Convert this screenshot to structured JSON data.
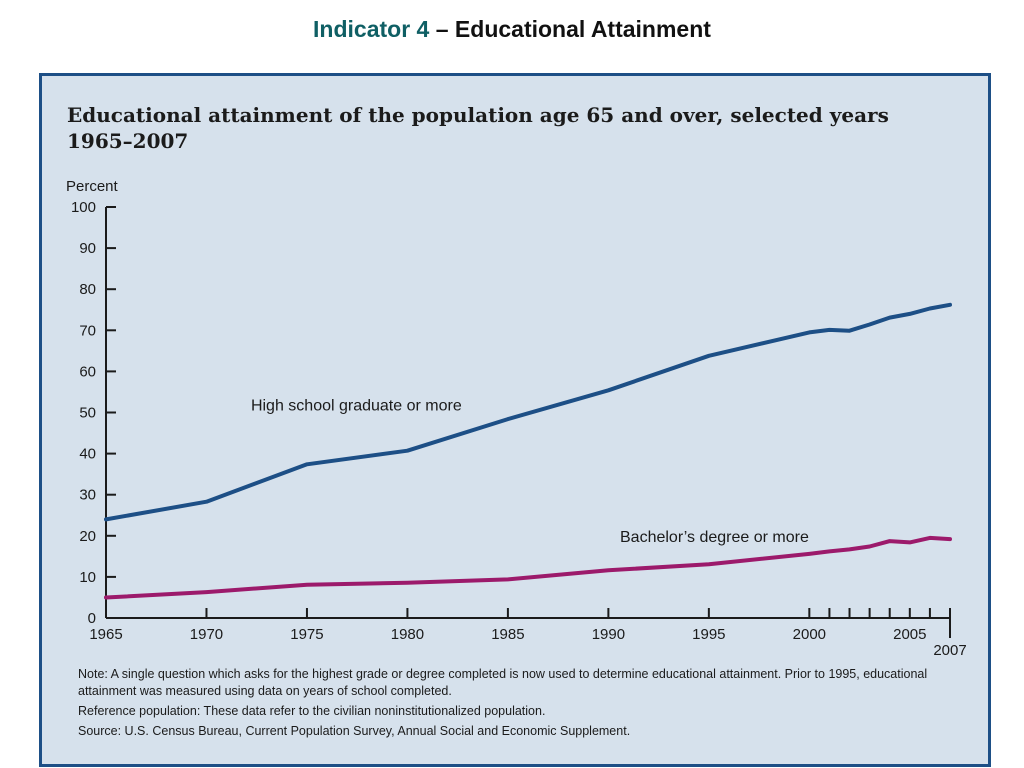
{
  "slide": {
    "title_accent": "Indicator 4",
    "title_rest": " – Educational Attainment"
  },
  "chart_data": {
    "type": "line",
    "title": "Educational attainment of the population age 65 and over, selected years 1965–2007",
    "ylabel": "Percent",
    "xlim": [
      1965,
      2007
    ],
    "ylim": [
      0,
      100
    ],
    "y_ticks": [
      0,
      10,
      20,
      30,
      40,
      50,
      60,
      70,
      80,
      90,
      100
    ],
    "x_major_ticks": [
      1965,
      1970,
      1975,
      1980,
      1985,
      1990,
      1995,
      2000,
      2005
    ],
    "x_minor_ticks": [
      2001,
      2002,
      2003,
      2004,
      2006
    ],
    "x_end_label": 2007,
    "grid": false,
    "legend": "inline labels",
    "series": [
      {
        "name": "High school graduate or more",
        "color": "#1d4f86",
        "points": [
          [
            1965,
            24
          ],
          [
            1970,
            28.3
          ],
          [
            1975,
            37.4
          ],
          [
            1980,
            40.7
          ],
          [
            1985,
            48.4
          ],
          [
            1990,
            55.4
          ],
          [
            1995,
            63.8
          ],
          [
            2000,
            69.5
          ],
          [
            2001,
            70.1
          ],
          [
            2002,
            69.9
          ],
          [
            2003,
            71.4
          ],
          [
            2004,
            73.1
          ],
          [
            2005,
            74
          ],
          [
            2006,
            75.3
          ],
          [
            2007,
            76.2
          ]
        ]
      },
      {
        "name": "Bachelor’s degree or more",
        "color": "#9c1a6b",
        "points": [
          [
            1965,
            5
          ],
          [
            1970,
            6.3
          ],
          [
            1975,
            8.1
          ],
          [
            1980,
            8.6
          ],
          [
            1985,
            9.4
          ],
          [
            1990,
            11.6
          ],
          [
            1995,
            13.1
          ],
          [
            2000,
            15.6
          ],
          [
            2001,
            16.2
          ],
          [
            2002,
            16.7
          ],
          [
            2003,
            17.4
          ],
          [
            2004,
            18.7
          ],
          [
            2005,
            18.4
          ],
          [
            2006,
            19.5
          ],
          [
            2007,
            19.2
          ]
        ]
      }
    ]
  },
  "notes": [
    "Note: A single question which asks for the highest grade or degree completed is now used to determine educational attainment. Prior to 1995, educational attainment was measured using data on years of school completed.",
    "Reference population: These data refer to the civilian noninstitutionalized population.",
    "Source: U.S. Census Bureau, Current Population Survey, Annual Social and Economic Supplement."
  ]
}
